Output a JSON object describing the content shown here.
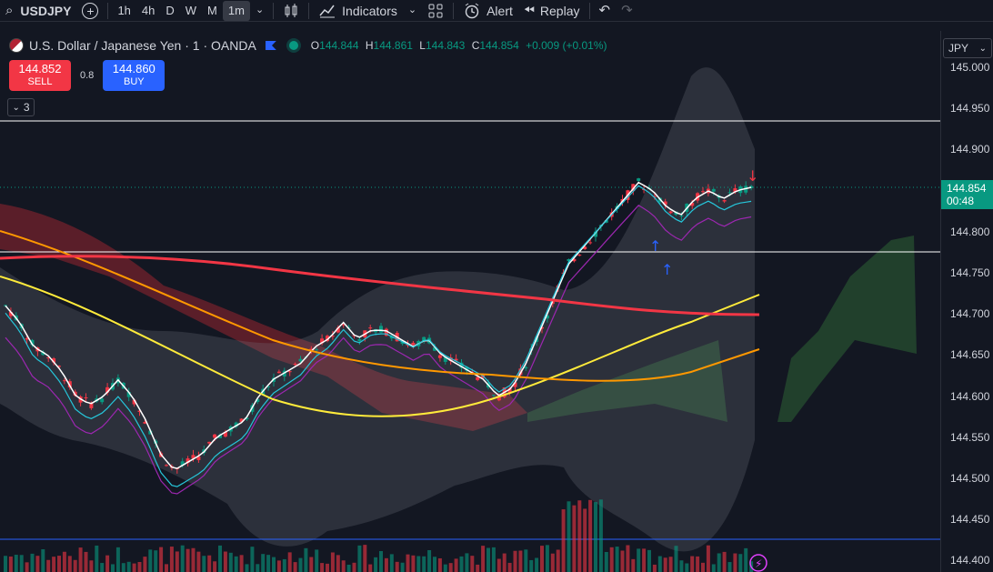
{
  "toolbar": {
    "symbol": "USDJPY",
    "timeframes": [
      "1h",
      "4h",
      "D",
      "W",
      "M",
      "1m"
    ],
    "active_timeframe": "1m",
    "indicators_label": "Indicators",
    "alert_label": "Alert",
    "replay_label": "Replay"
  },
  "legend": {
    "title": "U.S. Dollar / Japanese Yen · 1 · OANDA",
    "o_key": "O",
    "o_val": "144.844",
    "h_key": "H",
    "h_val": "144.861",
    "l_key": "L",
    "l_val": "144.843",
    "c_key": "C",
    "c_val": "144.854",
    "change": "+0.009 (+0.01%)"
  },
  "trade": {
    "sell_price": "144.852",
    "sell_label": "SELL",
    "spread": "0.8",
    "buy_price": "144.860",
    "buy_label": "BUY"
  },
  "indicators_collapsed_count": "3",
  "price_axis": {
    "currency": "JPY",
    "ticks": [
      "145.000",
      "144.950",
      "144.900",
      "144.854",
      "144.800",
      "144.750",
      "144.700",
      "144.650",
      "144.600",
      "144.550",
      "144.500",
      "144.450",
      "144.400"
    ],
    "current_price": "144.854",
    "countdown": "00:48"
  },
  "colors": {
    "up": "#089981",
    "down": "#f23645",
    "ma_fast": "#ffffff",
    "ma_cyan": "#26c6da",
    "ma_purple": "#9c27b0",
    "ma_yellow": "#ffeb3b",
    "ma_orange": "#ff9800",
    "ma_red": "#f23645"
  }
}
